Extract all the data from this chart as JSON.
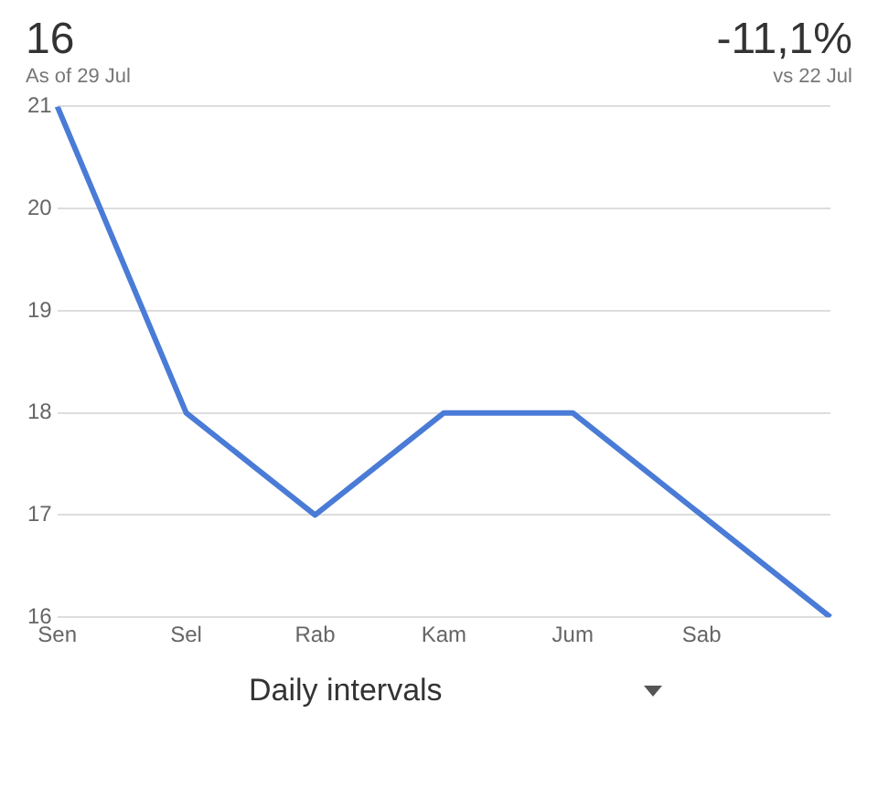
{
  "chart_data": {
    "type": "line",
    "title": "16",
    "subtitle": "As of 29 Jul",
    "annotations": [
      "-11,1%",
      "vs 22 Jul",
      "Daily intervals"
    ],
    "categories": [
      "Sen",
      "Sel",
      "Rab",
      "Kam",
      "Jum",
      "Sab",
      null
    ],
    "series": [
      {
        "color": "#4a7bd6",
        "values": [
          21,
          18,
          17,
          18,
          18,
          17,
          16
        ]
      }
    ],
    "ylim": [
      16,
      21
    ],
    "yticks": [
      16,
      17,
      18,
      19,
      20,
      21
    ],
    "grid": "y",
    "marker": "none",
    "line_style": "solid",
    "legend": false
  }
}
